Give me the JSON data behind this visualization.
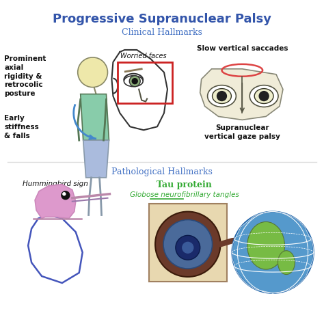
{
  "title": "Progressive Supranuclear Palsy",
  "subtitle1": "Clinical Hallmarks",
  "subtitle2": "Pathological Hallmarks",
  "bg_color": "#ffffff",
  "title_color": "#3355AA",
  "subtitle_color": "#4472C4",
  "text_color": "#111111",
  "green_color": "#33AA33",
  "red_color": "#CC2222",
  "person_body_color": "#88CCAA",
  "person_pants_color": "#AABBDD",
  "person_skin_color": "#EEE8AA",
  "hbird_color": "#CC99CC",
  "hbird_outline": "#5555BB",
  "cell_bg": "#E8D8B0",
  "cell_border": "#A08060"
}
